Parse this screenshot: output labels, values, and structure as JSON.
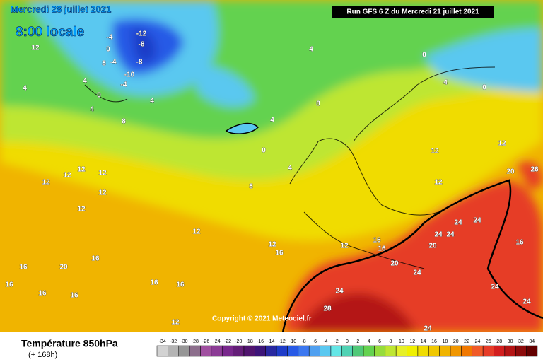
{
  "header": {
    "date": "Mercredi 28 juillet 2021",
    "time": "8:00 locale",
    "run": "Run GFS 6 Z du Mercredi 21 juillet 2021"
  },
  "map": {
    "copyright": "Copyright © 2021 Meteociel.fr",
    "contour_labels": [
      "-12",
      "-8",
      "-8",
      "-10",
      "-4",
      "-4",
      "-4",
      "0",
      "0",
      "4",
      "4",
      "4",
      "8",
      "12",
      "4",
      "4",
      "4",
      "0",
      "0",
      "8",
      "8",
      "4",
      "0",
      "4",
      "8",
      "12",
      "12",
      "12",
      "12",
      "12",
      "12",
      "12",
      "12",
      "12",
      "12",
      "12",
      "12",
      "16",
      "16",
      "16",
      "16",
      "16",
      "16",
      "16",
      "16",
      "16",
      "16",
      "20",
      "20",
      "20",
      "20",
      "24",
      "24",
      "24",
      "24",
      "24",
      "24",
      "24",
      "24",
      "24",
      "28",
      "26",
      "16",
      "12"
    ]
  },
  "footer": {
    "title": "Température 850hPa",
    "subtitle": "(+ 168h)"
  },
  "legend": {
    "values": [
      -34,
      -32,
      -30,
      -28,
      -26,
      -24,
      -22,
      -20,
      -18,
      -16,
      -14,
      -12,
      -10,
      -8,
      -6,
      -4,
      -2,
      0,
      2,
      4,
      6,
      8,
      10,
      12,
      14,
      16,
      18,
      20,
      22,
      24,
      26,
      28,
      30,
      32,
      34
    ],
    "colors": [
      "#d2d2d2",
      "#b4b4b4",
      "#969696",
      "#8c6e8c",
      "#a050a0",
      "#8c3c96",
      "#78288c",
      "#641e78",
      "#50146e",
      "#3c1478",
      "#2828a0",
      "#1e3cc8",
      "#285ae6",
      "#3c78f0",
      "#50a0f0",
      "#5ac8f0",
      "#64e6e6",
      "#50d2b4",
      "#50c878",
      "#64d250",
      "#96dc3c",
      "#bee632",
      "#e6f028",
      "#f0f000",
      "#f0dc00",
      "#f0c800",
      "#f0b400",
      "#f09600",
      "#f07800",
      "#f05a28",
      "#e63c28",
      "#d21e1e",
      "#b41414",
      "#8c0a0a",
      "#640000"
    ]
  }
}
